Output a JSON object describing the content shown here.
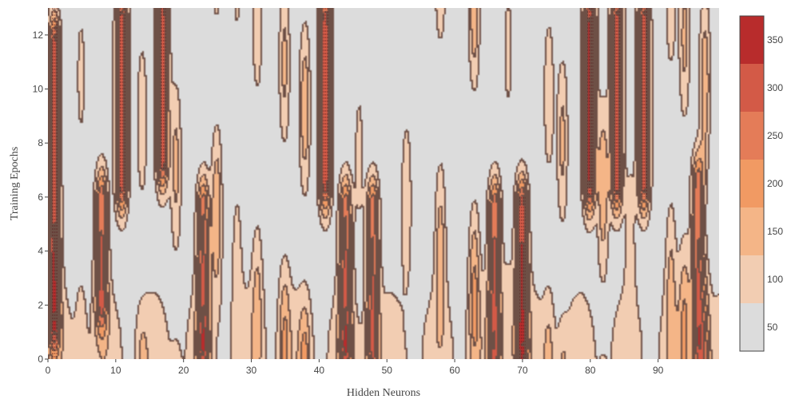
{
  "chart_data": {
    "type": "contour",
    "xlabel": "Hidden Neurons",
    "ylabel": "Training Epochs",
    "xlim": [
      0,
      99
    ],
    "ylim": [
      0,
      13
    ],
    "x_ticks": [
      0,
      10,
      20,
      30,
      40,
      50,
      60,
      70,
      80,
      90
    ],
    "y_ticks": [
      0,
      2,
      4,
      6,
      8,
      10,
      12
    ],
    "colorbar": {
      "ticks": [
        50,
        100,
        150,
        200,
        250,
        300,
        350
      ],
      "range": [
        25,
        375
      ],
      "levels": [
        {
          "from": 25,
          "to": 75,
          "color": "#dcdcdc"
        },
        {
          "from": 75,
          "to": 125,
          "color": "#f2cdb2"
        },
        {
          "from": 125,
          "to": 175,
          "color": "#f4b587"
        },
        {
          "from": 175,
          "to": 225,
          "color": "#f19a63"
        },
        {
          "from": 225,
          "to": 275,
          "color": "#e47c58"
        },
        {
          "from": 275,
          "to": 325,
          "color": "#d35a47"
        },
        {
          "from": 325,
          "to": 375,
          "color": "#b82c2c"
        },
        {
          "from": 375,
          "to": 400,
          "color": "#a0151f"
        }
      ]
    },
    "notable_peaks": [
      {
        "x": 1,
        "y_range": [
          0,
          13
        ],
        "approx_max": 350
      },
      {
        "x": 8,
        "y_range": [
          2,
          6
        ],
        "approx_max": 300
      },
      {
        "x": 11,
        "y_range": [
          6,
          13
        ],
        "approx_max": 350
      },
      {
        "x": 17,
        "y_range": [
          7,
          13
        ],
        "approx_max": 350
      },
      {
        "x": 23,
        "y_range": [
          0,
          6
        ],
        "approx_max": 300
      },
      {
        "x": 41,
        "y_range": [
          6,
          13
        ],
        "approx_max": 350
      },
      {
        "x": 44,
        "y_range": [
          0,
          6
        ],
        "approx_max": 300
      },
      {
        "x": 48,
        "y_range": [
          0,
          6
        ],
        "approx_max": 300
      },
      {
        "x": 66,
        "y_range": [
          0,
          6
        ],
        "approx_max": 300
      },
      {
        "x": 70,
        "y_range": [
          0,
          6
        ],
        "approx_max": 350
      },
      {
        "x": 80,
        "y_range": [
          6,
          13
        ],
        "approx_max": 375
      },
      {
        "x": 84,
        "y_range": [
          6,
          13
        ],
        "approx_max": 350
      },
      {
        "x": 88,
        "y_range": [
          6,
          13
        ],
        "approx_max": 350
      },
      {
        "x": 96,
        "y_range": [
          0,
          7
        ],
        "approx_max": 300
      }
    ]
  }
}
